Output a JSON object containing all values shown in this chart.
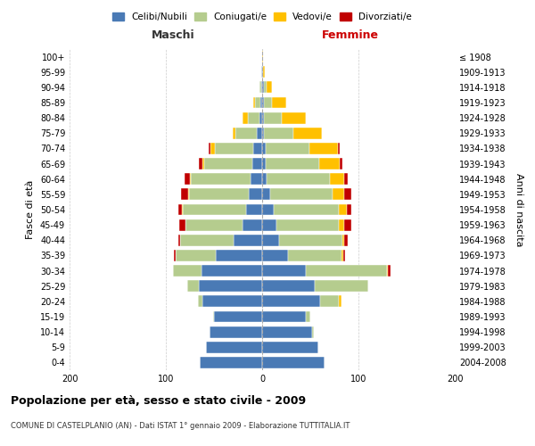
{
  "age_groups": [
    "0-4",
    "5-9",
    "10-14",
    "15-19",
    "20-24",
    "25-29",
    "30-34",
    "35-39",
    "40-44",
    "45-49",
    "50-54",
    "55-59",
    "60-64",
    "65-69",
    "70-74",
    "75-79",
    "80-84",
    "85-89",
    "90-94",
    "95-99",
    "100+"
  ],
  "birth_years": [
    "2004-2008",
    "1999-2003",
    "1994-1998",
    "1989-1993",
    "1984-1988",
    "1979-1983",
    "1974-1978",
    "1969-1973",
    "1964-1968",
    "1959-1963",
    "1954-1958",
    "1949-1953",
    "1944-1948",
    "1939-1943",
    "1934-1938",
    "1929-1933",
    "1924-1928",
    "1919-1923",
    "1914-1918",
    "1909-1913",
    "≤ 1908"
  ],
  "colors": {
    "celibi": "#4a7ab5",
    "coniugati": "#b5cc8e",
    "vedovi": "#ffc000",
    "divorziati": "#c00000"
  },
  "males": {
    "celibi": [
      65,
      58,
      55,
      50,
      62,
      66,
      63,
      48,
      30,
      20,
      17,
      14,
      12,
      10,
      9,
      6,
      3,
      2,
      1,
      1,
      0
    ],
    "coniugati": [
      0,
      0,
      0,
      1,
      5,
      12,
      30,
      42,
      55,
      60,
      65,
      62,
      62,
      50,
      40,
      22,
      12,
      5,
      2,
      0,
      0
    ],
    "vedovi": [
      0,
      0,
      0,
      0,
      0,
      0,
      0,
      0,
      0,
      0,
      1,
      1,
      1,
      2,
      5,
      3,
      5,
      2,
      0,
      0,
      0
    ],
    "divorziati": [
      0,
      0,
      0,
      0,
      0,
      0,
      0,
      2,
      2,
      6,
      4,
      7,
      6,
      4,
      2,
      0,
      0,
      0,
      0,
      0,
      0
    ]
  },
  "females": {
    "celibi": [
      65,
      58,
      52,
      45,
      60,
      55,
      45,
      27,
      18,
      15,
      12,
      8,
      5,
      4,
      4,
      2,
      2,
      2,
      2,
      1,
      0
    ],
    "coniugati": [
      0,
      0,
      2,
      5,
      20,
      55,
      85,
      55,
      65,
      65,
      68,
      65,
      65,
      55,
      45,
      30,
      18,
      8,
      3,
      0,
      0
    ],
    "vedovi": [
      0,
      0,
      0,
      0,
      2,
      0,
      1,
      2,
      2,
      5,
      8,
      12,
      15,
      22,
      30,
      30,
      25,
      15,
      5,
      2,
      1
    ],
    "divorziati": [
      0,
      0,
      0,
      0,
      0,
      0,
      2,
      2,
      4,
      8,
      5,
      8,
      4,
      2,
      2,
      0,
      0,
      0,
      0,
      0,
      0
    ]
  },
  "title": "Popolazione per età, sesso e stato civile - 2009",
  "subtitle": "COMUNE DI CASTELPLANIO (AN) - Dati ISTAT 1° gennaio 2009 - Elaborazione TUTTITALIA.IT",
  "xlabel_left": "Maschi",
  "xlabel_right": "Femmine",
  "ylabel_left": "Fasce di età",
  "ylabel_right": "Anni di nascita",
  "legend_labels": [
    "Celibi/Nubili",
    "Coniugati/e",
    "Vedovi/e",
    "Divorziati/e"
  ],
  "xlim": 200,
  "bg_color": "#ffffff",
  "grid_color": "#cccccc"
}
